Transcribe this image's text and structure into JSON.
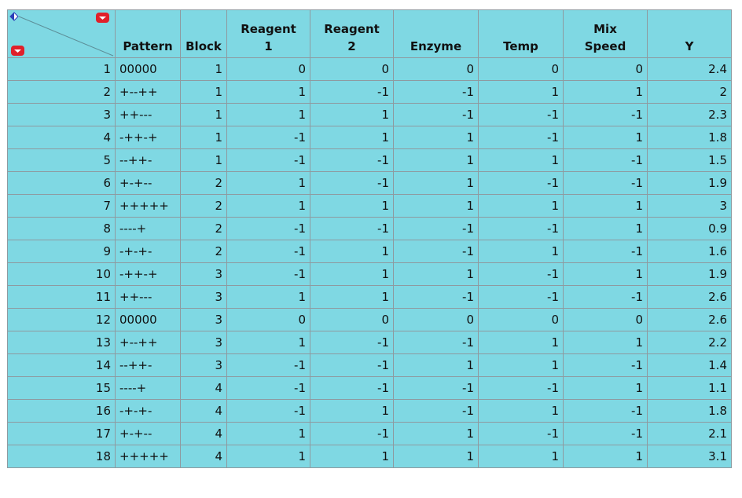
{
  "table": {
    "columns": [
      {
        "key": "pattern",
        "line1": "",
        "line2": "Pattern"
      },
      {
        "key": "block",
        "line1": "",
        "line2": "Block"
      },
      {
        "key": "reagent1",
        "line1": "Reagent",
        "line2": "1"
      },
      {
        "key": "reagent2",
        "line1": "Reagent",
        "line2": "2"
      },
      {
        "key": "enzyme",
        "line1": "",
        "line2": "Enzyme"
      },
      {
        "key": "temp",
        "line1": "",
        "line2": "Temp"
      },
      {
        "key": "mixspeed",
        "line1": "Mix",
        "line2": "Speed"
      },
      {
        "key": "y",
        "line1": "",
        "line2": "Y"
      }
    ],
    "rows": [
      {
        "n": "1",
        "pattern": "00000",
        "block": "1",
        "reagent1": "0",
        "reagent2": "0",
        "enzyme": "0",
        "temp": "0",
        "mixspeed": "0",
        "y": "2.4"
      },
      {
        "n": "2",
        "pattern": "+--++",
        "block": "1",
        "reagent1": "1",
        "reagent2": "-1",
        "enzyme": "-1",
        "temp": "1",
        "mixspeed": "1",
        "y": "2"
      },
      {
        "n": "3",
        "pattern": "++---",
        "block": "1",
        "reagent1": "1",
        "reagent2": "1",
        "enzyme": "-1",
        "temp": "-1",
        "mixspeed": "-1",
        "y": "2.3"
      },
      {
        "n": "4",
        "pattern": "-++-+",
        "block": "1",
        "reagent1": "-1",
        "reagent2": "1",
        "enzyme": "1",
        "temp": "-1",
        "mixspeed": "1",
        "y": "1.8"
      },
      {
        "n": "5",
        "pattern": "--++-",
        "block": "1",
        "reagent1": "-1",
        "reagent2": "-1",
        "enzyme": "1",
        "temp": "1",
        "mixspeed": "-1",
        "y": "1.5"
      },
      {
        "n": "6",
        "pattern": "+-+--",
        "block": "2",
        "reagent1": "1",
        "reagent2": "-1",
        "enzyme": "1",
        "temp": "-1",
        "mixspeed": "-1",
        "y": "1.9"
      },
      {
        "n": "7",
        "pattern": "+++++",
        "block": "2",
        "reagent1": "1",
        "reagent2": "1",
        "enzyme": "1",
        "temp": "1",
        "mixspeed": "1",
        "y": "3"
      },
      {
        "n": "8",
        "pattern": "----+",
        "block": "2",
        "reagent1": "-1",
        "reagent2": "-1",
        "enzyme": "-1",
        "temp": "-1",
        "mixspeed": "1",
        "y": "0.9"
      },
      {
        "n": "9",
        "pattern": "-+-+-",
        "block": "2",
        "reagent1": "-1",
        "reagent2": "1",
        "enzyme": "-1",
        "temp": "1",
        "mixspeed": "-1",
        "y": "1.6"
      },
      {
        "n": "10",
        "pattern": "-++-+",
        "block": "3",
        "reagent1": "-1",
        "reagent2": "1",
        "enzyme": "1",
        "temp": "-1",
        "mixspeed": "1",
        "y": "1.9"
      },
      {
        "n": "11",
        "pattern": "++---",
        "block": "3",
        "reagent1": "1",
        "reagent2": "1",
        "enzyme": "-1",
        "temp": "-1",
        "mixspeed": "-1",
        "y": "2.6"
      },
      {
        "n": "12",
        "pattern": "00000",
        "block": "3",
        "reagent1": "0",
        "reagent2": "0",
        "enzyme": "0",
        "temp": "0",
        "mixspeed": "0",
        "y": "2.6"
      },
      {
        "n": "13",
        "pattern": "+--++",
        "block": "3",
        "reagent1": "1",
        "reagent2": "-1",
        "enzyme": "-1",
        "temp": "1",
        "mixspeed": "1",
        "y": "2.2"
      },
      {
        "n": "14",
        "pattern": "--++-",
        "block": "3",
        "reagent1": "-1",
        "reagent2": "-1",
        "enzyme": "1",
        "temp": "1",
        "mixspeed": "-1",
        "y": "1.4"
      },
      {
        "n": "15",
        "pattern": "----+",
        "block": "4",
        "reagent1": "-1",
        "reagent2": "-1",
        "enzyme": "-1",
        "temp": "-1",
        "mixspeed": "1",
        "y": "1.1"
      },
      {
        "n": "16",
        "pattern": "-+-+-",
        "block": "4",
        "reagent1": "-1",
        "reagent2": "1",
        "enzyme": "-1",
        "temp": "1",
        "mixspeed": "-1",
        "y": "1.8"
      },
      {
        "n": "17",
        "pattern": "+-+--",
        "block": "4",
        "reagent1": "1",
        "reagent2": "-1",
        "enzyme": "1",
        "temp": "-1",
        "mixspeed": "-1",
        "y": "2.1"
      },
      {
        "n": "18",
        "pattern": "+++++",
        "block": "4",
        "reagent1": "1",
        "reagent2": "1",
        "enzyme": "1",
        "temp": "1",
        "mixspeed": "1",
        "y": "3.1"
      }
    ]
  },
  "corner": {
    "icons": [
      "select-all-diamond-icon",
      "column-menu-icon",
      "row-menu-icon"
    ]
  },
  "colors": {
    "cell_background": "#7fd8e3",
    "grid_line": "#8e9aa0",
    "menu_icon_red": "#e0202a",
    "select_icon_blue": "#2d3fb8"
  }
}
